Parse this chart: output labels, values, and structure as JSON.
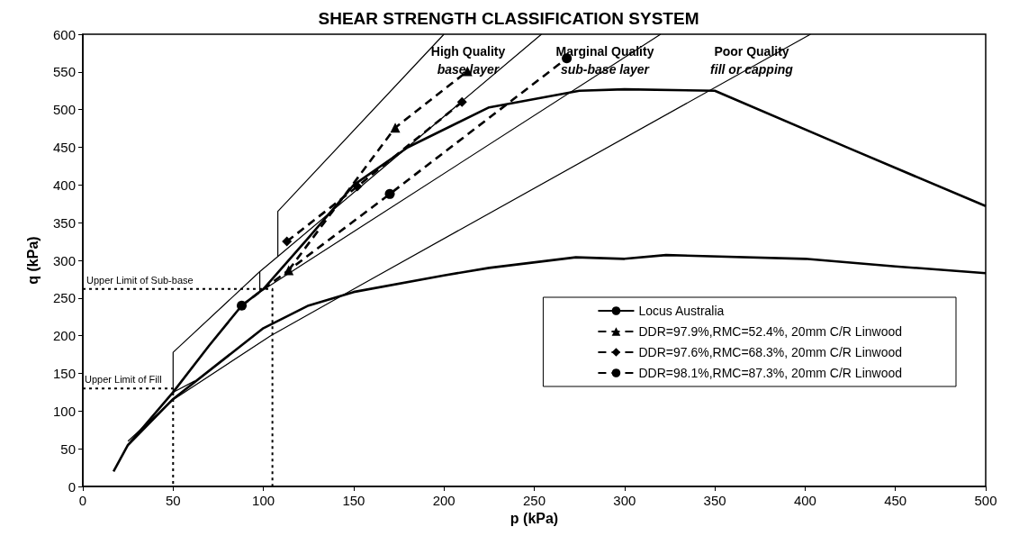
{
  "chart_data": {
    "type": "line",
    "title": "SHEAR STRENGTH CLASSIFICATION SYSTEM",
    "xlabel": "p (kPa)",
    "ylabel": "q (kPa)",
    "xlim": [
      0,
      500
    ],
    "xticks": [
      0,
      50,
      100,
      150,
      200,
      250,
      300,
      350,
      400,
      450,
      500
    ],
    "ylim": [
      0,
      600
    ],
    "yticks": [
      0,
      50,
      100,
      150,
      200,
      250,
      300,
      350,
      400,
      450,
      500,
      550,
      600
    ],
    "grid": false,
    "legend": "right",
    "line_style": "solid",
    "marker": "none",
    "series": [
      {
        "name": "Locus Australia",
        "color": "#000000",
        "x": [
          17,
          25,
          50,
          70,
          88,
          100,
          125,
          150,
          180,
          225,
          275,
          300,
          350,
          425,
          500,
          null,
          17,
          25,
          50,
          75,
          100,
          125,
          150,
          200,
          225,
          273,
          300,
          323,
          400,
          450,
          500
        ],
        "values": [
          20,
          55,
          125,
          187,
          240,
          262,
          330,
          400,
          450,
          503,
          525,
          527,
          525,
          448,
          372,
          null,
          20,
          55,
          116,
          163,
          210,
          240,
          258,
          280,
          290,
          304,
          302,
          307,
          302,
          292,
          283
        ]
      },
      {
        "name": "DDR=97.9%,RMC=52.4%, 20mm C/R Linwood",
        "color": "#000000",
        "line_style": "dashed",
        "marker": "triangle",
        "x": [
          114,
          173,
          213
        ],
        "values": [
          287,
          476,
          551
        ]
      },
      {
        "name": "DDR=97.6%,RMC=68.3%, 20mm C/R Linwood",
        "color": "#000000",
        "line_style": "dashed",
        "marker": "diamond",
        "x": [
          113,
          152,
          210
        ],
        "values": [
          325,
          398,
          510
        ]
      },
      {
        "name": "DDR=98.1%,RMC=87.3%, 20mm C/R Linwood",
        "color": "#000000",
        "line_style": "dashed",
        "marker": "circle",
        "x": [
          88,
          170,
          268
        ],
        "values": [
          240,
          388,
          568
        ]
      },
      {
        "color": "#000000",
        "x": [
          62,
          50,
          50,
          98,
          108,
          254
        ],
        "values": [
          140,
          125,
          178,
          285,
          305,
          600
        ]
      },
      {
        "color": "#000000",
        "x": [
          108,
          108,
          200
        ],
        "values": [
          305,
          365,
          600
        ]
      },
      {
        "color": "#000000",
        "x": [
          98,
          98,
          320
        ],
        "values": [
          285,
          258,
          600
        ]
      },
      {
        "color": "#000000",
        "x": [
          25,
          50,
          104,
          153,
          403
        ],
        "values": [
          60,
          115,
          200,
          266,
          600
        ]
      },
      {
        "color": "#000000",
        "line_style": "dotted",
        "x": [
          0,
          105,
          105
        ],
        "values": [
          262,
          262,
          0
        ]
      },
      {
        "color": "#000000",
        "line_style": "dotted",
        "x": [
          0,
          50,
          50
        ],
        "values": [
          130,
          130,
          0
        ]
      }
    ],
    "annotations": [
      "High Quality\nbase layer",
      "Marginal Quality\nsub-base layer",
      "Poor Quality\nfill or capping",
      {
        "text": "Upper Limit of Sub-base",
        "x": 2,
        "y": 265
      },
      {
        "text": "Upper Limit of Fill",
        "x": 1,
        "y": 133
      }
    ]
  }
}
